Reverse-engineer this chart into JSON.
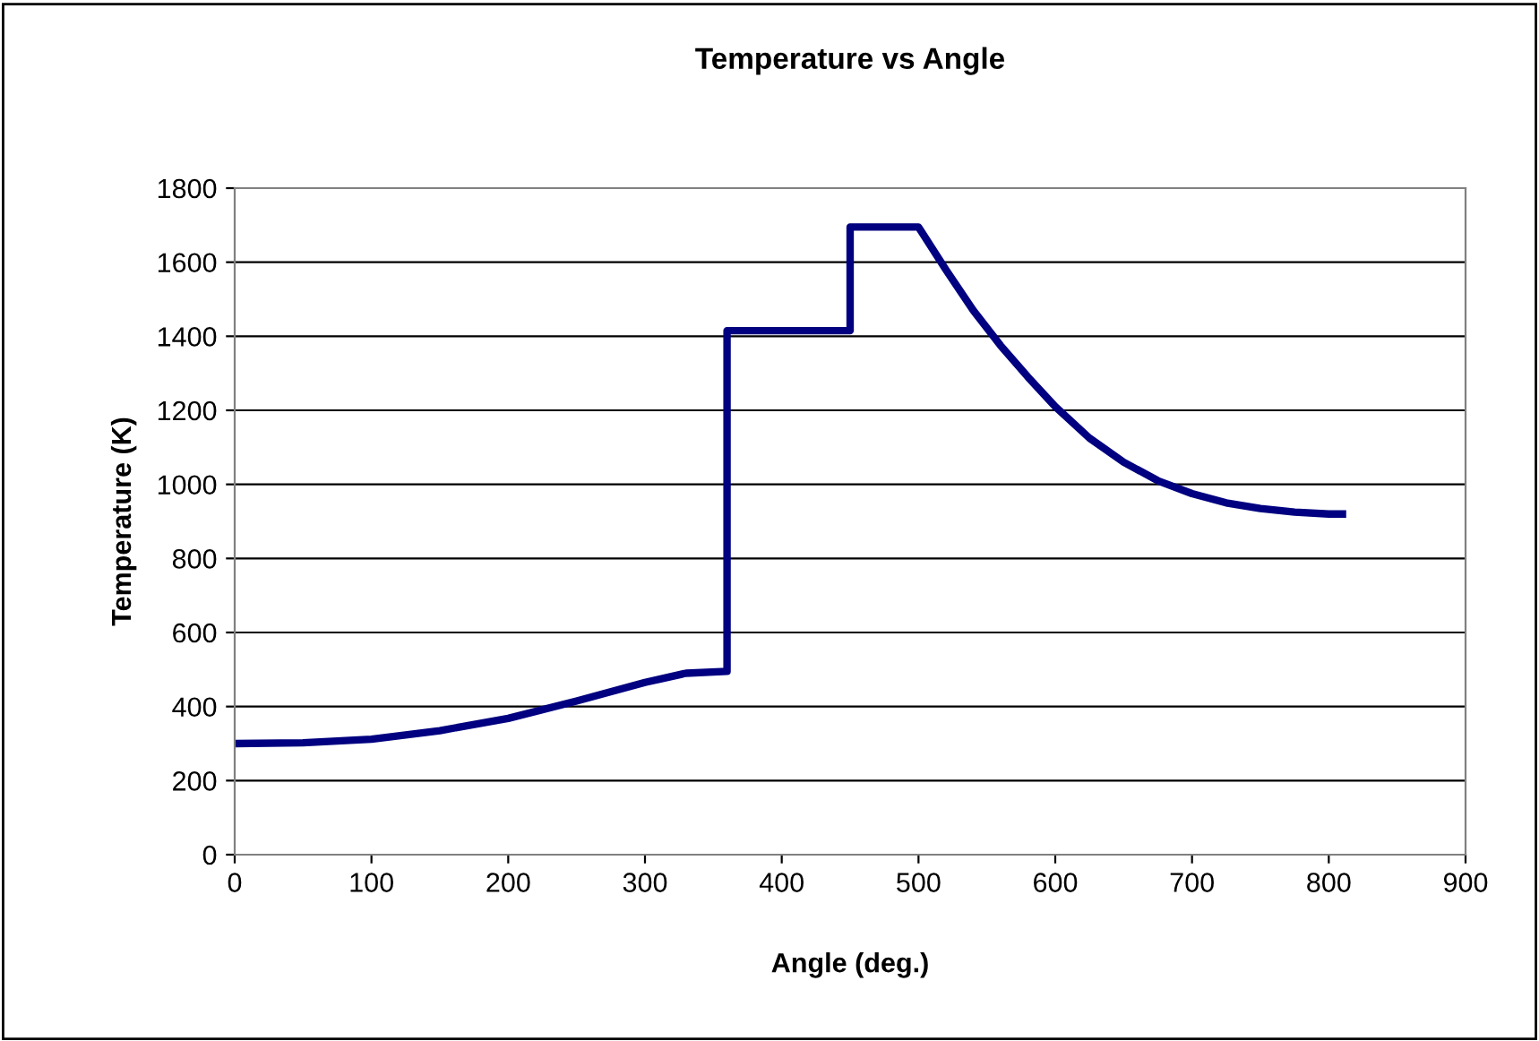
{
  "chart_data": {
    "type": "line",
    "title": "Temperature vs Angle",
    "xlabel": "Angle (deg.)",
    "ylabel": "Temperature (K)",
    "x": [
      0,
      50,
      100,
      150,
      200,
      250,
      300,
      330,
      360,
      360,
      450,
      450,
      500,
      520,
      540,
      560,
      580,
      600,
      625,
      650,
      675,
      700,
      725,
      750,
      775,
      800,
      810
    ],
    "series": [
      {
        "color": "#000080",
        "values": [
          300,
          302,
          312,
          335,
          368,
          415,
          465,
          490,
          495,
          1415,
          1415,
          1695,
          1695,
          1580,
          1470,
          1375,
          1290,
          1210,
          1125,
          1060,
          1010,
          975,
          950,
          935,
          925,
          920,
          920
        ]
      }
    ],
    "xlim": [
      0,
      900
    ],
    "xticks": [
      0,
      100,
      200,
      300,
      400,
      500,
      600,
      700,
      800,
      900
    ],
    "ylim": [
      0,
      1800
    ],
    "yticks": [
      0,
      200,
      400,
      600,
      800,
      1000,
      1200,
      1400,
      1600,
      1800
    ],
    "grid": "y",
    "legend": false,
    "marker": "none",
    "line_style": "solid"
  }
}
